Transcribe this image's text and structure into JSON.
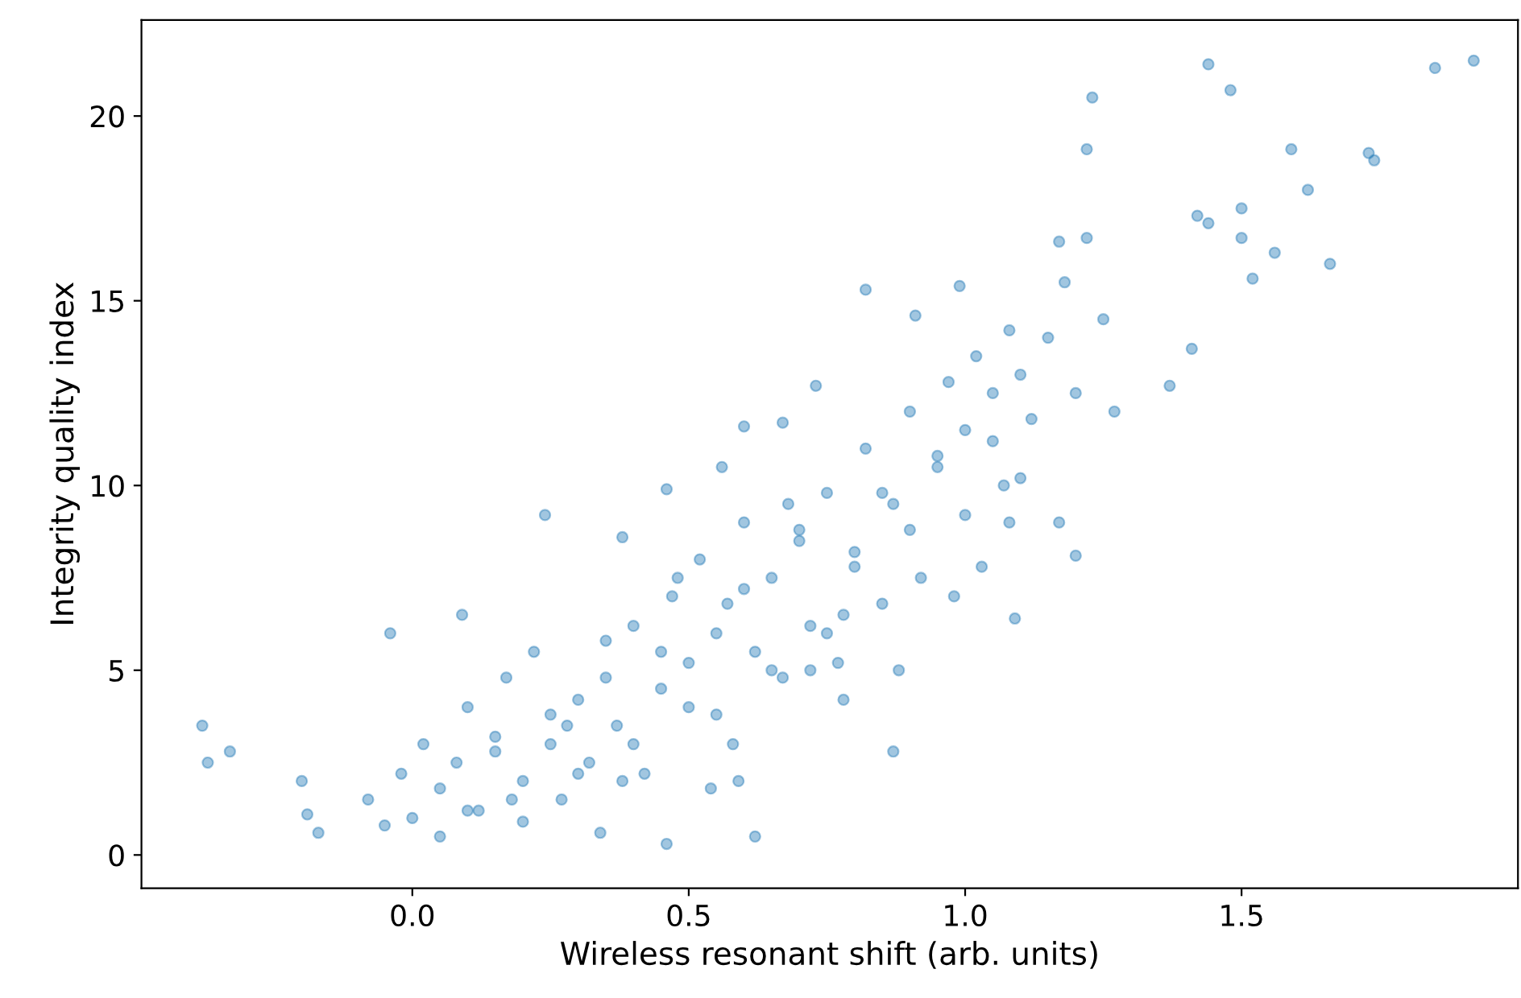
{
  "chart_data": {
    "type": "scatter",
    "xlabel": "Wireless resonant shift (arb. units)",
    "ylabel": "Integrity quality index",
    "xlim": [
      -0.49,
      2.0
    ],
    "ylim": [
      -0.9,
      22.6
    ],
    "xticks": [
      {
        "value": 0,
        "label": "0.0"
      },
      {
        "value": 0.5,
        "label": "0.5"
      },
      {
        "value": 1,
        "label": "1.0"
      },
      {
        "value": 1.5,
        "label": "1.5"
      }
    ],
    "yticks": [
      0,
      5,
      10,
      15,
      20
    ],
    "grid": false,
    "marker": "circle",
    "series": [
      {
        "color": "#1f77b4",
        "x": [
          -0.38,
          -0.37,
          -0.33,
          -0.2,
          -0.19,
          -0.17,
          -0.04,
          0.09,
          0.24,
          0.38,
          0.46,
          0.56,
          0.6,
          0.67,
          0.73,
          0.82,
          0.91,
          0.99,
          1.08,
          1.17,
          1.18,
          1.22,
          1.23,
          1.22,
          1.44,
          1.42,
          1.44,
          1.48,
          1.5,
          1.5,
          1.59,
          1.62,
          1.52,
          1.56,
          1.66,
          1.73,
          1.74,
          1.85,
          1.92,
          1.41,
          1.37,
          1.27,
          1.17,
          1.2,
          1.09,
          1.03,
          0.87,
          0.78,
          0.72,
          0.62,
          0.46,
          0.34,
          0.54,
          0.59,
          -0.08,
          -0.05,
          -0.02,
          0.0,
          0.02,
          0.05,
          0.08,
          0.1,
          0.12,
          0.15,
          0.17,
          0.2,
          0.22,
          0.25,
          0.27,
          0.3,
          0.32,
          0.35,
          0.37,
          0.4,
          0.42,
          0.45,
          0.47,
          0.5,
          0.52,
          0.55,
          0.57,
          0.6,
          0.62,
          0.65,
          0.67,
          0.7,
          0.72,
          0.75,
          0.77,
          0.8,
          0.82,
          0.85,
          0.87,
          0.9,
          0.92,
          0.95,
          0.97,
          1.0,
          1.02,
          1.05,
          1.07,
          1.1,
          1.12,
          1.15,
          1.2,
          1.25,
          0.05,
          0.1,
          0.15,
          0.2,
          0.25,
          0.3,
          0.35,
          0.4,
          0.45,
          0.5,
          0.55,
          0.6,
          0.65,
          0.7,
          0.75,
          0.8,
          0.85,
          0.9,
          0.95,
          1.0,
          1.05,
          1.1,
          0.18,
          0.28,
          0.38,
          0.48,
          0.58,
          0.68,
          0.78,
          0.88,
          0.98,
          1.08
        ],
        "values": [
          3.5,
          2.5,
          2.8,
          2.0,
          1.1,
          0.6,
          6.0,
          6.5,
          9.2,
          8.6,
          9.9,
          10.5,
          11.6,
          11.7,
          12.7,
          15.3,
          14.6,
          15.4,
          14.2,
          16.6,
          15.5,
          16.7,
          20.5,
          19.1,
          17.1,
          17.3,
          21.4,
          20.7,
          17.5,
          16.7,
          19.1,
          18.0,
          15.6,
          16.3,
          16.0,
          19.0,
          18.8,
          21.3,
          21.5,
          13.7,
          12.7,
          12.0,
          9.0,
          8.1,
          6.4,
          7.8,
          2.8,
          4.2,
          5.0,
          0.5,
          0.3,
          0.6,
          1.8,
          2.0,
          1.5,
          0.8,
          2.2,
          1.0,
          3.0,
          1.8,
          2.5,
          4.0,
          1.2,
          3.2,
          4.8,
          2.0,
          5.5,
          3.0,
          1.5,
          4.2,
          2.5,
          5.8,
          3.5,
          6.2,
          2.2,
          4.5,
          7.0,
          5.2,
          8.0,
          3.8,
          6.8,
          9.0,
          5.5,
          7.5,
          4.8,
          8.5,
          6.2,
          9.8,
          5.2,
          8.2,
          11.0,
          6.8,
          9.5,
          12.0,
          7.5,
          10.5,
          12.8,
          9.2,
          13.5,
          11.2,
          10.0,
          13.0,
          11.8,
          14.0,
          12.5,
          14.5,
          0.5,
          1.2,
          2.8,
          0.9,
          3.8,
          2.2,
          4.8,
          3.0,
          5.5,
          4.0,
          6.0,
          7.2,
          5.0,
          8.8,
          6.0,
          7.8,
          9.8,
          8.8,
          10.8,
          11.5,
          12.5,
          10.2,
          1.5,
          3.5,
          2.0,
          7.5,
          3.0,
          9.5,
          6.5,
          5.0,
          7.0,
          9.0
        ]
      }
    ]
  }
}
